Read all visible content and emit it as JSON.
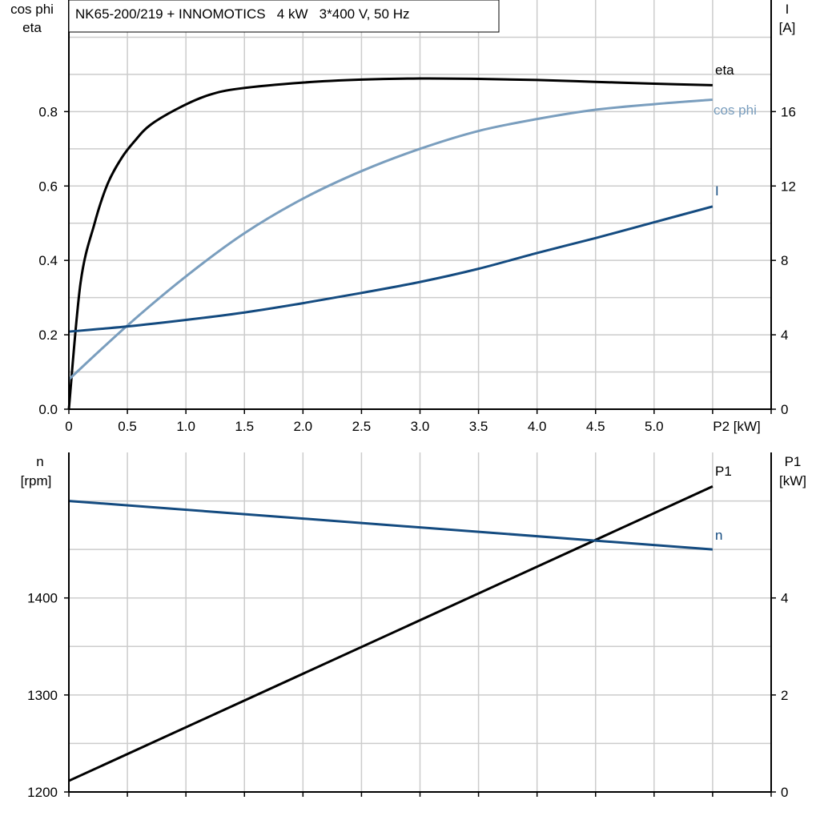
{
  "chart_data": [
    {
      "type": "line",
      "title": "NK65-200/219 + INNOMOTICS   4 kW   3*400 V, 50 Hz",
      "xlabel": "P2 [kW]",
      "ylabel_left": [
        "cos phi",
        "eta"
      ],
      "ylabel_right": [
        "I",
        "[A]"
      ],
      "xlim": [
        0,
        6
      ],
      "ylim_left": [
        0,
        1.1
      ],
      "ylim_right": [
        0,
        22
      ],
      "x_ticks": [
        "0",
        "0.5",
        "1.0",
        "1.5",
        "2.0",
        "2.5",
        "3.0",
        "3.5",
        "4.0",
        "4.5",
        "5.0"
      ],
      "y_ticks_left": [
        "0.0",
        "0.2",
        "0.4",
        "0.6",
        "0.8"
      ],
      "y_ticks_right": [
        "0",
        "4",
        "8",
        "12",
        "16"
      ],
      "grid": true,
      "series": [
        {
          "name": "eta",
          "axis": "left",
          "color": "#000000",
          "x": [
            0,
            0.1,
            0.22,
            0.33,
            0.45,
            0.56,
            0.7,
            0.96,
            1.2,
            1.46,
            2.0,
            2.5,
            3.0,
            3.5,
            4.0,
            4.5,
            5.0,
            5.5
          ],
          "y": [
            0,
            0.34,
            0.5,
            0.605,
            0.675,
            0.72,
            0.765,
            0.813,
            0.845,
            0.862,
            0.878,
            0.886,
            0.889,
            0.888,
            0.885,
            0.88,
            0.875,
            0.871
          ]
        },
        {
          "name": "cos phi",
          "axis": "left",
          "color": "#7a9ebe",
          "x": [
            0,
            0.5,
            1.0,
            1.5,
            2.0,
            2.5,
            3.0,
            3.5,
            4.0,
            4.5,
            5.0,
            5.5
          ],
          "y": [
            0.08,
            0.225,
            0.357,
            0.473,
            0.566,
            0.64,
            0.7,
            0.748,
            0.78,
            0.805,
            0.82,
            0.832
          ]
        },
        {
          "name": "I",
          "axis": "right",
          "color": "#144b80",
          "x": [
            0,
            0.5,
            1.0,
            1.5,
            2.0,
            2.5,
            3.0,
            3.5,
            4.0,
            4.5,
            5.0,
            5.5
          ],
          "y": [
            4.17,
            4.45,
            4.8,
            5.2,
            5.7,
            6.25,
            6.84,
            7.55,
            8.4,
            9.2,
            10.05,
            10.9
          ]
        }
      ]
    },
    {
      "type": "line",
      "ylabel_left": [
        "n",
        "[rpm]"
      ],
      "ylabel_right": [
        "P1",
        "[kW]"
      ],
      "xlim": [
        0,
        6
      ],
      "ylim_left": [
        1200,
        1550
      ],
      "ylim_right": [
        0,
        7
      ],
      "y_ticks_left": [
        "1200",
        "1300",
        "1400"
      ],
      "y_ticks_right": [
        "0",
        "2",
        "4"
      ],
      "grid": true,
      "series": [
        {
          "name": "P1",
          "axis": "right",
          "color": "#000000",
          "x": [
            0,
            5.5
          ],
          "y": [
            0.23,
            6.3
          ]
        },
        {
          "name": "n",
          "axis": "left",
          "color": "#144b80",
          "x": [
            0,
            5.5
          ],
          "y": [
            1500,
            1450
          ]
        }
      ]
    }
  ]
}
